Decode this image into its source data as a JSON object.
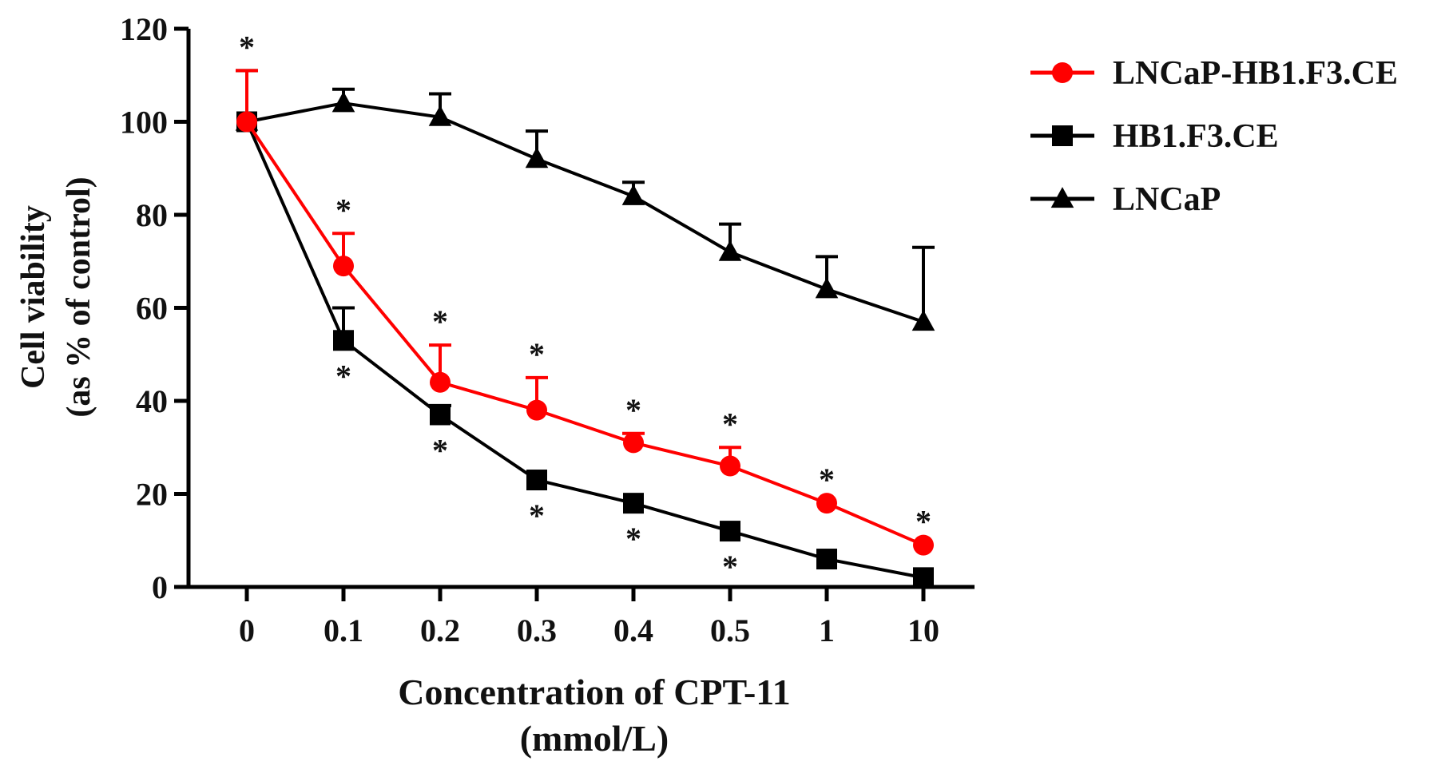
{
  "chart_data": {
    "type": "line",
    "title": "",
    "xlabel_line1": "Concentration of CPT-11",
    "xlabel_line2": "(mmol/L)",
    "ylabel_line1": "Cell viability",
    "ylabel_line2": "(as % of control)",
    "categories": [
      "0",
      "0.1",
      "0.2",
      "0.3",
      "0.4",
      "0.5",
      "1",
      "10"
    ],
    "ylim": [
      0,
      120
    ],
    "yticks": [
      0,
      20,
      40,
      60,
      80,
      100,
      120
    ],
    "grid": false,
    "legend_position": "top-right",
    "significance_marker": "*",
    "series": [
      {
        "name": "LNCaP-HB1.F3.CE",
        "color": "#ff0000",
        "marker": "circle",
        "values": [
          100,
          69,
          44,
          38,
          31,
          26,
          18,
          9
        ],
        "error_upper": [
          111,
          76,
          52,
          45,
          33,
          30,
          18,
          9
        ],
        "significance": [
          "above",
          "above",
          "above",
          "above",
          "above",
          "above",
          "above",
          "above"
        ]
      },
      {
        "name": "HB1.F3.CE",
        "color": "#000000",
        "marker": "square",
        "values": [
          100,
          53,
          37,
          23,
          18,
          12,
          6,
          2
        ],
        "error_upper": [
          111,
          60,
          39,
          23,
          18,
          12,
          6,
          2
        ],
        "significance": [
          "none",
          "below",
          "below",
          "below",
          "below",
          "below",
          "none",
          "none"
        ]
      },
      {
        "name": "LNCaP",
        "color": "#000000",
        "marker": "triangle",
        "values": [
          100,
          104,
          101,
          92,
          84,
          72,
          64,
          57
        ],
        "error_upper": [
          100,
          107,
          106,
          98,
          87,
          78,
          71,
          73
        ],
        "significance": [
          "none",
          "none",
          "none",
          "none",
          "none",
          "none",
          "none",
          "none"
        ]
      }
    ]
  }
}
